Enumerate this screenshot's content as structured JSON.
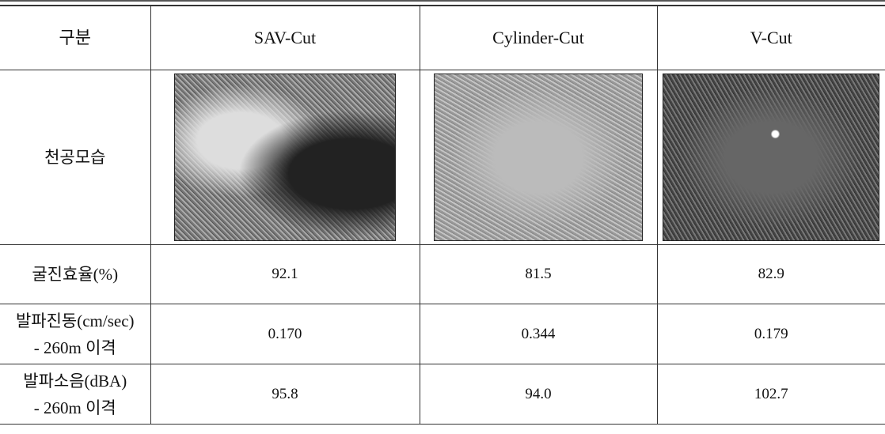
{
  "table": {
    "header": [
      "구분",
      "SAV-Cut",
      "Cylinder-Cut",
      "V-Cut"
    ],
    "photo_row_label": "천공모습",
    "rows": [
      {
        "label": [
          "굴진효율(%)"
        ],
        "cells": [
          "92.1",
          "81.5",
          "82.9"
        ]
      },
      {
        "label": [
          "발파진동(cm/sec)",
          "- 260m 이격"
        ],
        "cells": [
          "0.170",
          "0.344",
          "0.179"
        ]
      },
      {
        "label": [
          "발파소음(dBA)",
          "- 260m 이격"
        ],
        "cells": [
          "95.8",
          "94.0",
          "102.7"
        ]
      }
    ]
  }
}
